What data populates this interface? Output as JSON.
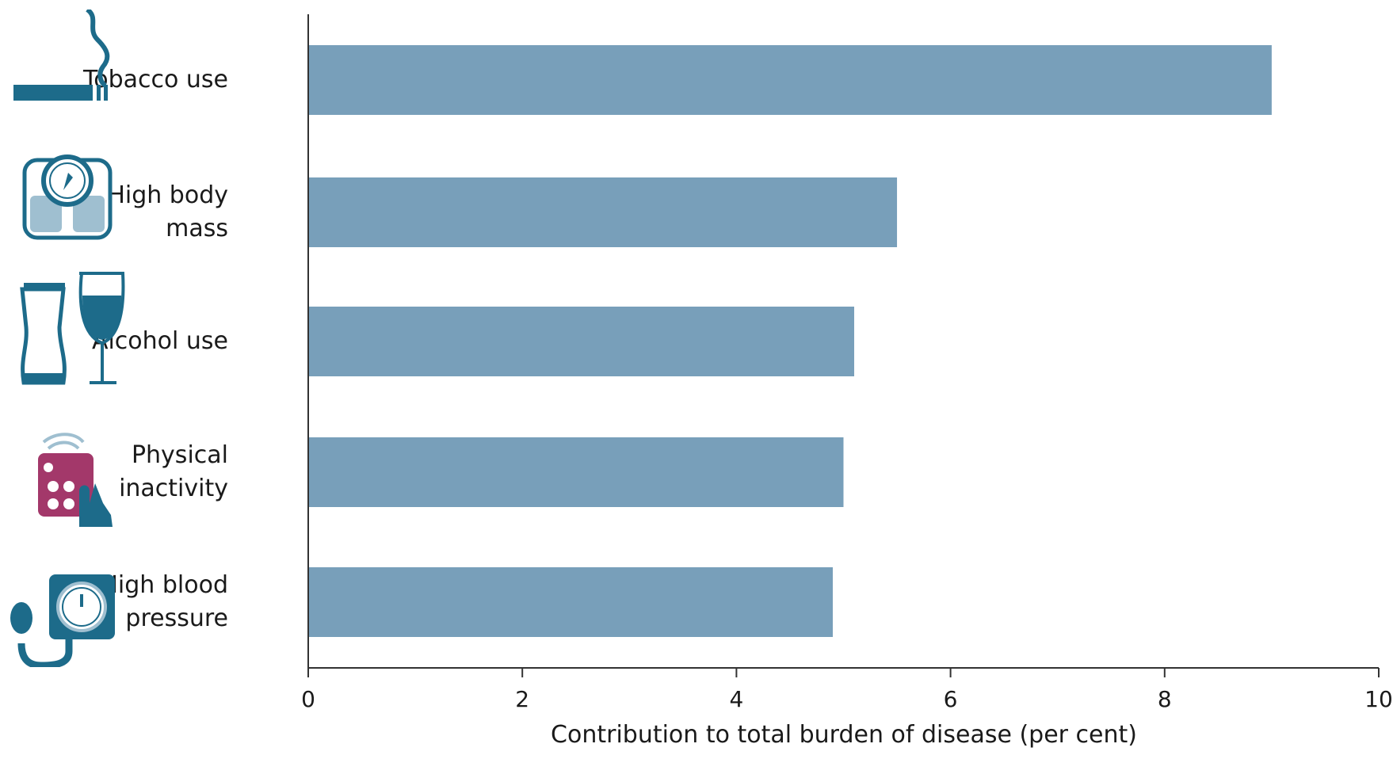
{
  "chart_data": {
    "type": "bar",
    "orientation": "horizontal",
    "categories": [
      "Tobacco use",
      "High body\nmass",
      "Alcohol use",
      "Physical\ninactivity",
      "High blood\npressure"
    ],
    "values": [
      9.0,
      5.5,
      5.1,
      5.0,
      4.9
    ],
    "xlabel": "Contribution to total burden of disease (per cent)",
    "xlim": [
      0,
      10
    ],
    "xticks": [
      "0",
      "2",
      "4",
      "6",
      "8",
      "10"
    ],
    "grid": false,
    "bar_color": "#789fba",
    "icons": [
      "cigarette-icon",
      "scale-icon",
      "drinks-icon",
      "tv-remote-icon",
      "blood-pressure-monitor-icon"
    ]
  },
  "colors": {
    "icon_teal": "#1d6b8a",
    "icon_magenta": "#a3386a",
    "axis": "#333333"
  }
}
